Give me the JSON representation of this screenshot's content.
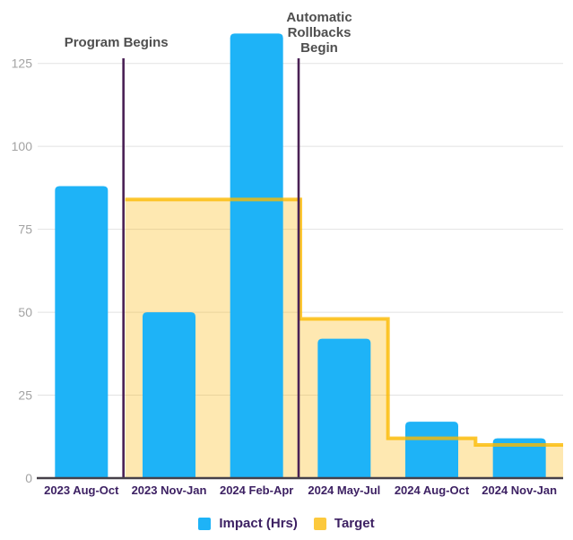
{
  "chart_data": {
    "type": "bar",
    "title": "",
    "xlabel": "",
    "ylabel": "",
    "categories": [
      "2023 Aug-Oct",
      "2023 Nov-Jan",
      "2024 Feb-Apr",
      "2024 May-Jul",
      "2024 Aug-Oct",
      "2024 Nov-Jan"
    ],
    "series": [
      {
        "name": "Impact (Hrs)",
        "type": "bar",
        "color": "#1eb3f7",
        "values": [
          88,
          50,
          134,
          42,
          17,
          12
        ]
      },
      {
        "name": "Target",
        "type": "step_area",
        "line_color": "#fbb900",
        "line_opacity": 0.8,
        "fill_color": "#fcb813",
        "fill_opacity": 0.33,
        "values": [
          null,
          84,
          84,
          48,
          12,
          10
        ]
      }
    ],
    "ylim": [
      0,
      140
    ],
    "yticks": [
      0,
      25,
      50,
      75,
      100,
      125
    ],
    "grid": true,
    "legend_position": "bottom",
    "annotations": [
      {
        "label": "Program Begins",
        "lines": [
          "Program Begins"
        ],
        "at_boundary_after_index": 0
      },
      {
        "label": "Automatic Rollbacks Begin",
        "lines": [
          "Automatic",
          "Rollbacks",
          "Begin"
        ],
        "at_boundary_after_index": 2
      }
    ]
  },
  "colors": {
    "impact_bar": "#1eb3f7",
    "target_yellow_swatch": "#fcc93d",
    "annotation_line": "#4a2155",
    "axis_label_text": "#3d2163",
    "ytick_text": "#a3a3a3",
    "annotation_text": "#4f4f4f",
    "gridline": "#e2e2e2",
    "axis_line": "#454049"
  },
  "legend": {
    "items": [
      {
        "label": "Impact (Hrs)",
        "color": "#1eb3f7"
      },
      {
        "label": "Target",
        "color": "#fcc93d"
      }
    ]
  }
}
